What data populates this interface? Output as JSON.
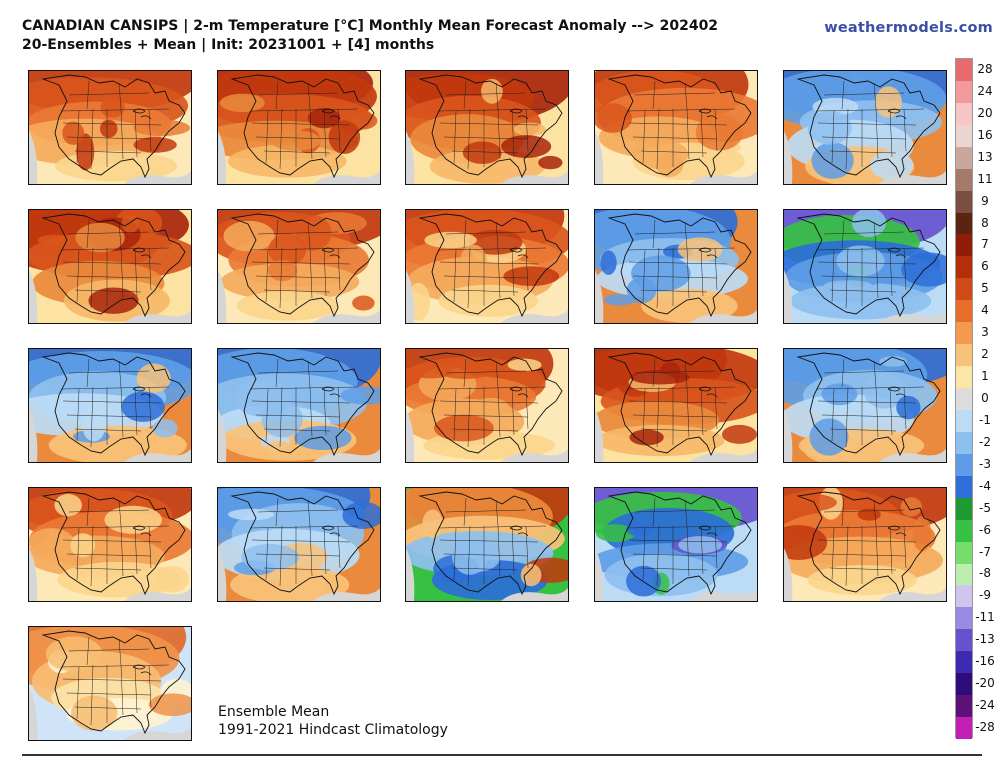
{
  "header": {
    "title_line1": "CANADIAN CANSIPS | 2-m Temperature [°C] Monthly Mean Forecast Anomaly --> 202402",
    "title_line2": "20-Ensembles + Mean | Init: 20231001 + [4] months",
    "brand": "weathermodels.com"
  },
  "caption": {
    "line1": "Ensemble Mean",
    "line2": "1991-2021 Hindcast Climatology"
  },
  "colorbar": {
    "labels": [
      "28",
      "24",
      "20",
      "16",
      "13",
      "11",
      "9",
      "8",
      "7",
      "6",
      "5",
      "4",
      "3",
      "2",
      "1",
      "0",
      "-1",
      "-2",
      "-3",
      "-4",
      "-5",
      "-6",
      "-7",
      "-8",
      "-9",
      "-11",
      "-13",
      "-16",
      "-20",
      "-24",
      "-28"
    ],
    "colors": [
      "#e86a6e",
      "#f09a9c",
      "#f6c6c6",
      "#ead6d0",
      "#c9a79a",
      "#a57a6b",
      "#7a4e40",
      "#5c2410",
      "#8f1c08",
      "#b32f0c",
      "#cf4a16",
      "#e86c2a",
      "#f39a4f",
      "#f8c27a",
      "#fbe6a5",
      "#dcdcdc",
      "#bcdcf6",
      "#8ec0ef",
      "#5e9de6",
      "#2d6ed8",
      "#1e9a30",
      "#37c142",
      "#76dd6a",
      "#bdeeb1",
      "#cfc5ef",
      "#9a8ae4",
      "#6652cf",
      "#3c2ab0",
      "#2d0d7a",
      "#5b1178",
      "#c21eb4"
    ]
  },
  "panels": [
    {
      "id": 1,
      "base": "warm"
    },
    {
      "id": 2,
      "base": "hot"
    },
    {
      "id": 3,
      "base": "hot"
    },
    {
      "id": 4,
      "base": "warm"
    },
    {
      "id": 5,
      "base": "cool"
    },
    {
      "id": 6,
      "base": "hot"
    },
    {
      "id": 7,
      "base": "warm"
    },
    {
      "id": 8,
      "base": "warm"
    },
    {
      "id": 9,
      "base": "cool"
    },
    {
      "id": 10,
      "base": "cold"
    },
    {
      "id": 11,
      "base": "cool"
    },
    {
      "id": 12,
      "base": "cool"
    },
    {
      "id": 13,
      "base": "warm"
    },
    {
      "id": 14,
      "base": "hot"
    },
    {
      "id": 15,
      "base": "cool"
    },
    {
      "id": 16,
      "base": "warm"
    },
    {
      "id": 17,
      "base": "cool"
    },
    {
      "id": 18,
      "base": "mixed"
    },
    {
      "id": 19,
      "base": "cold"
    },
    {
      "id": 20,
      "base": "warm"
    },
    {
      "id": 21,
      "base": "mild"
    }
  ]
}
